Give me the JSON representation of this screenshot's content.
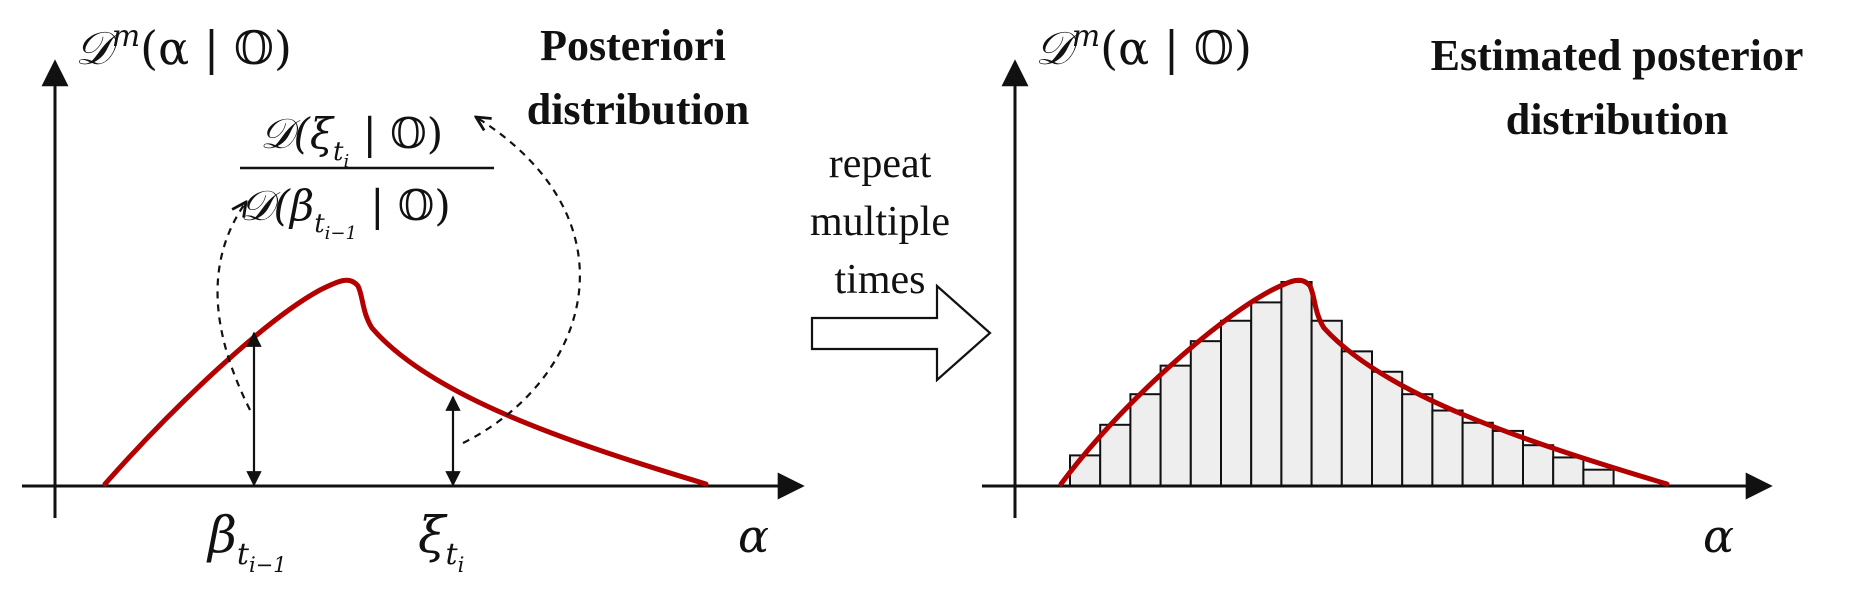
{
  "colors": {
    "curve": "#b30000",
    "histogram_fill": "#eeeeee",
    "ink": "#111111"
  },
  "left_panel": {
    "y_axis_label": {
      "main": "𝒟",
      "sup": "m",
      "args": "(α | 𝕆)"
    },
    "x_axis_label": "α",
    "title_lines": [
      "Posteriori",
      "distribution"
    ],
    "ratio": {
      "numerator": {
        "main": "𝒟(ξ",
        "sub": "t",
        "subsub": "i",
        "tail": " | 𝕆)"
      },
      "denominator": {
        "main": "𝒟(β",
        "sub": "t",
        "subsub": "i−1",
        "tail": " | 𝕆)"
      }
    },
    "markers": [
      {
        "symbol": "β",
        "sub": "t",
        "subsub": "i−1"
      },
      {
        "symbol": "ξ",
        "sub": "t",
        "subsub": "i"
      }
    ]
  },
  "transition": {
    "text_lines": [
      "repeat",
      "multiple",
      "times"
    ],
    "icon": "right-arrow-icon"
  },
  "right_panel": {
    "y_axis_label": {
      "main": "𝒟",
      "sup": "m",
      "args": "(α | 𝕆)"
    },
    "x_axis_label": "α",
    "title_lines": [
      "Estimated posterior",
      "distribution"
    ],
    "histogram_bin_heights": [
      0.15,
      0.3,
      0.45,
      0.59,
      0.71,
      0.81,
      0.9,
      1.0,
      0.81,
      0.66,
      0.56,
      0.45,
      0.37,
      0.31,
      0.27,
      0.2,
      0.14,
      0.08
    ]
  }
}
